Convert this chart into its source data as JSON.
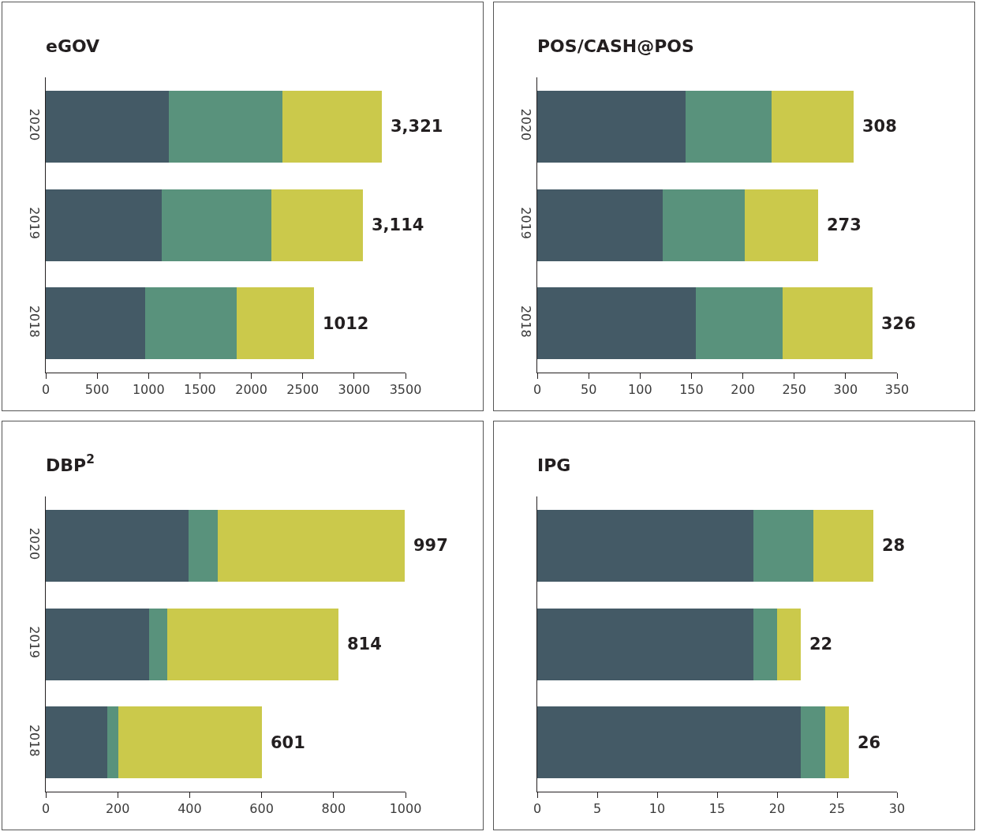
{
  "chart_data": [
    {
      "type": "bar",
      "title": "eGOV",
      "orientation": "horizontal",
      "stacked": true,
      "categories": [
        "2020",
        "2019",
        "2018"
      ],
      "series": [
        {
          "color": "#445a66",
          "values": [
            1195,
            1125,
            965
          ]
        },
        {
          "color": "#59927c",
          "values": [
            1110,
            1070,
            895
          ]
        },
        {
          "color": "#cbc94b",
          "values": [
            965,
            890,
            750
          ]
        }
      ],
      "xlim": [
        0,
        3500
      ],
      "xticks": [
        0,
        500,
        1000,
        1500,
        2000,
        2500,
        3000,
        3500
      ],
      "annotations": [
        {
          "text": "3,321",
          "x": 3270,
          "y": "2020"
        },
        {
          "text": "3,114",
          "x": 3085,
          "y": "2019"
        },
        {
          "text": "1012",
          "x": 2610,
          "y": "2018"
        }
      ]
    },
    {
      "type": "bar",
      "title": "POS/CASH@POS",
      "orientation": "horizontal",
      "stacked": true,
      "categories": [
        "2020",
        "2019",
        "2018"
      ],
      "series": [
        {
          "color": "#445a66",
          "values": [
            144,
            122,
            154
          ]
        },
        {
          "color": "#59927c",
          "values": [
            84,
            80,
            85
          ]
        },
        {
          "color": "#cbc94b",
          "values": [
            80,
            71,
            87
          ]
        }
      ],
      "xlim": [
        0,
        350
      ],
      "xticks": [
        0,
        50,
        100,
        150,
        200,
        250,
        300,
        350
      ],
      "totals": [
        "308",
        "273",
        "326"
      ]
    },
    {
      "type": "bar",
      "title": "DBP$^{2}$",
      "orientation": "horizontal",
      "stacked": true,
      "categories": [
        "2020",
        "2019",
        "2018"
      ],
      "series": [
        {
          "color": "#445a66",
          "values": [
            397,
            288,
            170
          ]
        },
        {
          "color": "#59927c",
          "values": [
            81,
            50,
            32
          ]
        },
        {
          "color": "#cbc94b",
          "values": [
            519,
            476,
            399
          ]
        }
      ],
      "xlim": [
        0,
        1000
      ],
      "xticks": [
        0,
        200,
        400,
        600,
        800,
        1000
      ],
      "totals": [
        "997",
        "814",
        "601"
      ]
    },
    {
      "type": "bar",
      "title": "IPG",
      "orientation": "horizontal",
      "stacked": true,
      "categories": [
        null,
        null,
        null
      ],
      "series": [
        {
          "color": "#445a66",
          "values": [
            18,
            18,
            22
          ]
        },
        {
          "color": "#59927c",
          "values": [
            5,
            2,
            2
          ]
        },
        {
          "color": "#cbc94b",
          "values": [
            5,
            2,
            2
          ]
        }
      ],
      "xlim": [
        0,
        30
      ],
      "xticks": [
        0,
        5,
        10,
        15,
        20,
        25,
        30
      ],
      "totals": [
        "28",
        "22",
        "26"
      ],
      "tick_labels": "x"
    }
  ]
}
